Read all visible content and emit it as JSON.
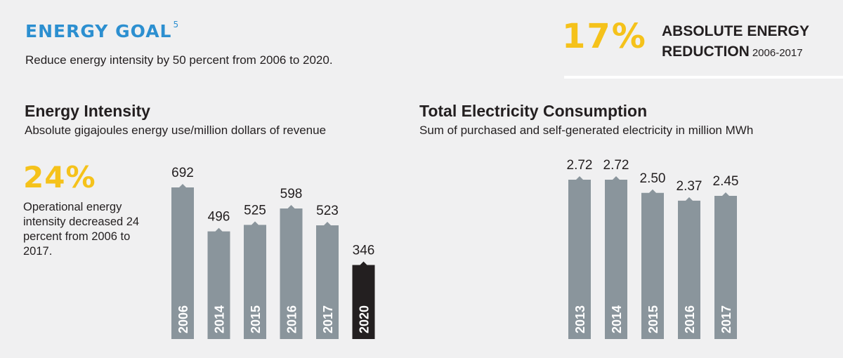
{
  "header": {
    "goal_title": "ENERGY GOAL",
    "goal_footnote": "5",
    "goal_subtitle": "Reduce energy intensity by 50 percent from 2006 to 2020."
  },
  "kpi": {
    "percent": "17%",
    "line1": "ABSOLUTE ENERGY",
    "line2": "REDUCTION",
    "years": "2006-2017"
  },
  "intensity": {
    "title": "Energy Intensity",
    "subtitle": "Absolute gigajoules energy use/million dollars of revenue",
    "highlight_percent": "24%",
    "highlight_text": "Operational energy intensity decreased 24 percent from 2006 to 2017."
  },
  "electricity": {
    "title": "Total Electricity Consumption",
    "subtitle": "Sum of purchased and self-generated electricity in million MWh"
  },
  "colors": {
    "bar": "#8a959c",
    "highlight_bar": "#231f20",
    "accent_yellow": "#f5c21b",
    "accent_blue": "#2c8fd0"
  },
  "chart_data": [
    {
      "type": "bar",
      "title": "Energy Intensity",
      "categories": [
        "2006",
        "2014",
        "2015",
        "2016",
        "2017",
        "2020"
      ],
      "values": [
        692,
        496,
        525,
        598,
        523,
        346
      ],
      "labels": [
        "692",
        "496",
        "525",
        "598",
        "523",
        "346"
      ],
      "highlight": [
        "2020"
      ],
      "ylim": [
        0,
        692
      ]
    },
    {
      "type": "bar",
      "title": "Total Electricity Consumption",
      "categories": [
        "2013",
        "2014",
        "2015",
        "2016",
        "2017"
      ],
      "values": [
        2.72,
        2.72,
        2.5,
        2.37,
        2.45
      ],
      "labels": [
        "2.72",
        "2.72",
        "2.50",
        "2.37",
        "2.45"
      ],
      "ylim": [
        0,
        2.72
      ]
    }
  ]
}
